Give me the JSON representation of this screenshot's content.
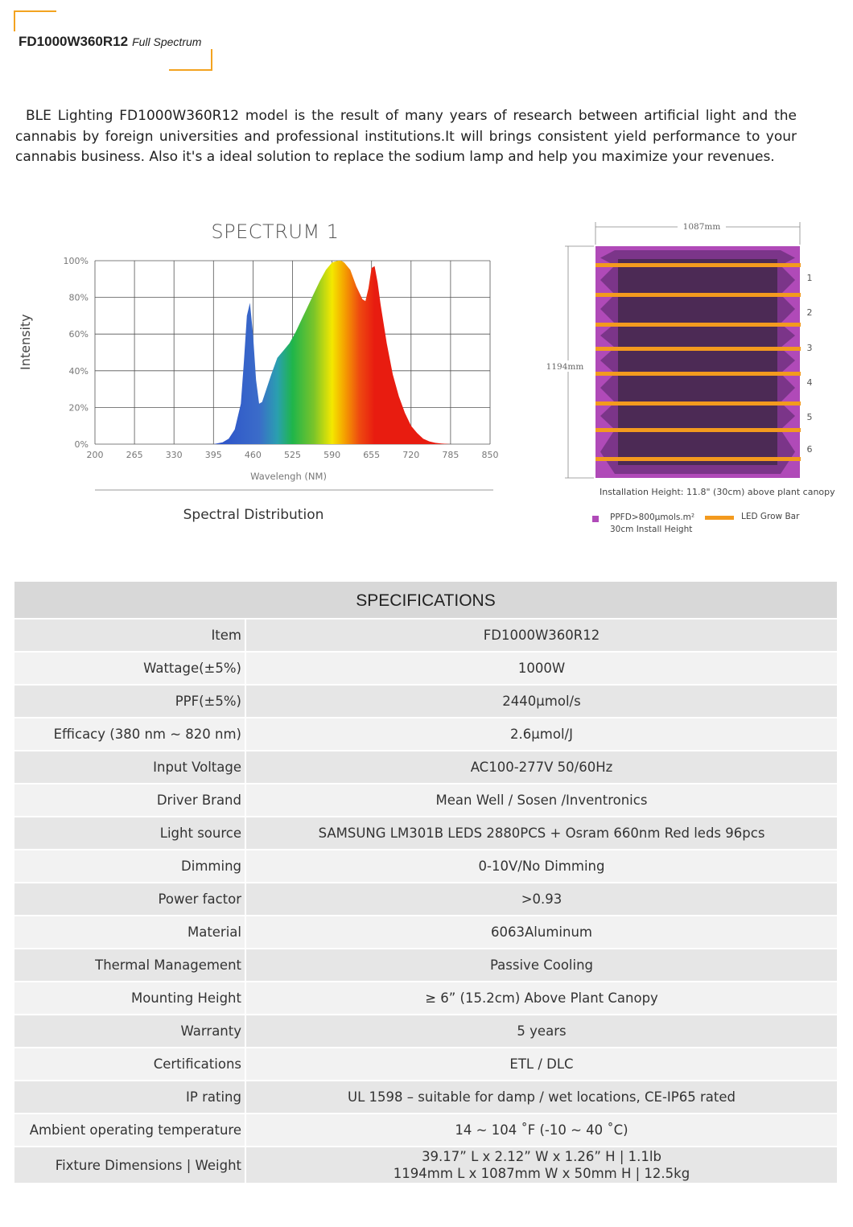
{
  "header": {
    "model": "FD1000W360R12",
    "subtitle": "Full Spectrum"
  },
  "intro": "BLE Lighting FD1000W360R12 model is the result of many years of research between artificial  light and the cannabis  by foreign universities and professional institutions.It will brings consistent yield performance to your  cannabis business. Also it's a ideal solution to replace the sodium lamp and help you maximize your revenues.",
  "chart_data": {
    "type": "area",
    "title": "SPECTRUM 1",
    "xlabel": "Wavelengh (NM)",
    "ylabel": "Intensity",
    "caption": "Spectral Distribution",
    "x_ticks": [
      "200",
      "265",
      "330",
      "395",
      "460",
      "525",
      "590",
      "655",
      "720",
      "785",
      "850"
    ],
    "y_ticks": [
      "0%",
      "20%",
      "40%",
      "60%",
      "80%",
      "100%"
    ],
    "xlim": [
      200,
      850
    ],
    "ylim": [
      0,
      100
    ],
    "grid": true,
    "x": [
      395,
      410,
      420,
      430,
      440,
      445,
      450,
      455,
      460,
      465,
      470,
      475,
      480,
      490,
      500,
      510,
      520,
      530,
      540,
      550,
      560,
      570,
      580,
      590,
      600,
      605,
      610,
      620,
      630,
      640,
      645,
      650,
      655,
      660,
      665,
      670,
      680,
      690,
      700,
      710,
      720,
      730,
      740,
      750,
      760,
      770,
      785
    ],
    "y": [
      0,
      1,
      3,
      8,
      22,
      45,
      70,
      77,
      60,
      35,
      22,
      23,
      28,
      38,
      47,
      51,
      55,
      61,
      68,
      75,
      82,
      89,
      95,
      99,
      100,
      100,
      99,
      95,
      86,
      79,
      78,
      85,
      96,
      97,
      88,
      76,
      55,
      38,
      26,
      17,
      10,
      6,
      3,
      1.5,
      0.7,
      0.3,
      0
    ]
  },
  "layout_diagram": {
    "width_label": "1087mm",
    "height_label": "1194mm",
    "bar_numbers": [
      "1",
      "2",
      "3",
      "4",
      "5",
      "6"
    ],
    "bar_count": 8,
    "install_height": "Installation Height: 11.8\" (30cm) above plant canopy",
    "legend_ppfd_line1": "PPFD>800μmols.m²",
    "legend_ppfd_line2": "30cm Install Height",
    "legend_bar": "LED Grow Bar",
    "colors": {
      "ppfd": "#b04ab8",
      "bar": "#f39a1e",
      "inner": "#4c2a55"
    }
  },
  "specs": {
    "title": "SPECIFICATIONS",
    "rows": [
      {
        "key": "Item",
        "value": "FD1000W360R12"
      },
      {
        "key": "Wattage(±5%)",
        "value": "1000W"
      },
      {
        "key": "PPF(±5%)",
        "value": "2440μmol/s"
      },
      {
        "key": "Efficacy (380 nm ~ 820 nm)",
        "value": "2.6μmol/J"
      },
      {
        "key": "Input Voltage",
        "value": "AC100-277V 50/60Hz"
      },
      {
        "key": "Driver Brand",
        "value": "Mean Well / Sosen /Inventronics"
      },
      {
        "key": "Light source",
        "value": "SAMSUNG LM301B LEDS 2880PCS + Osram 660nm Red leds 96pcs"
      },
      {
        "key": "Dimming",
        "value": "0-10V/No Dimming"
      },
      {
        "key": "Power factor",
        "value": ">0.93"
      },
      {
        "key": "Material",
        "value": "6063Aluminum"
      },
      {
        "key": "Thermal Management",
        "value": "Passive Cooling"
      },
      {
        "key": "Mounting Height",
        "value": "≥ 6” (15.2cm) Above Plant Canopy"
      },
      {
        "key": "Warranty",
        "value": "5 years"
      },
      {
        "key": "Certifications",
        "value": "ETL / DLC"
      },
      {
        "key": "IP rating",
        "value": "UL 1598 – suitable for damp / wet locations, CE-IP65 rated"
      },
      {
        "key": "Ambient operating temperature",
        "value": "14 ~ 104 ˚F (-10 ~ 40 ˚C)"
      },
      {
        "key": "Fixture Dimensions | Weight",
        "value": "39.17” L x 2.12” W x 1.26” H | 1.1lb",
        "value2": "1194mm L x 1087mm W x 50mm H | 12.5kg"
      }
    ]
  }
}
